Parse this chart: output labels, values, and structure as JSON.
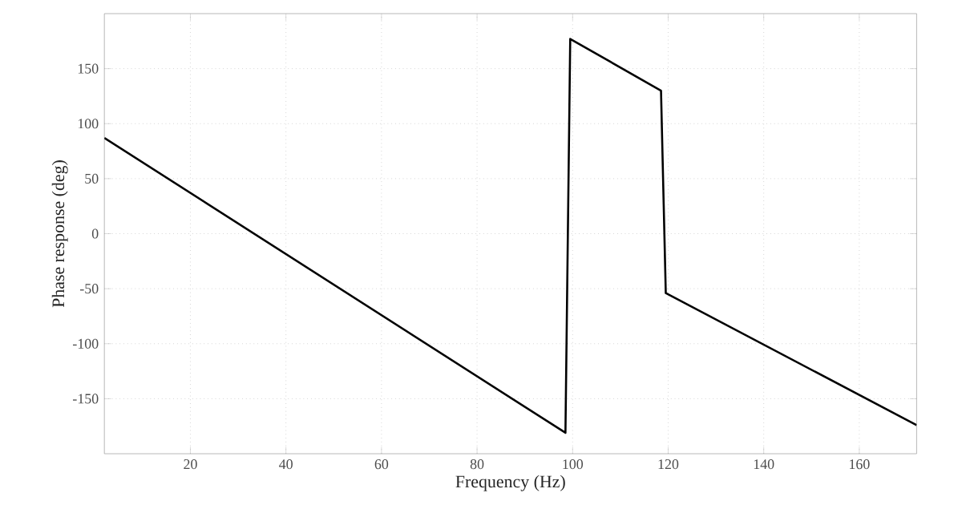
{
  "chart_data": {
    "type": "line",
    "xlabel": "Frequency (Hz)",
    "ylabel": "Phase response (deg)",
    "x": [
      2,
      98.5,
      99.5,
      118.5,
      119.5,
      172
    ],
    "series": [
      {
        "color": "#000000",
        "values": [
          87,
          -181,
          177,
          130,
          -54,
          -174
        ]
      }
    ],
    "xlim": [
      2,
      172
    ],
    "xticks": [
      20,
      40,
      60,
      80,
      100,
      120,
      140,
      160
    ],
    "ylim": [
      -200,
      200
    ],
    "yticks": [
      -150,
      -100,
      -50,
      0,
      50,
      100,
      150
    ],
    "grid": true,
    "marker": "none",
    "line_style": "solid"
  }
}
